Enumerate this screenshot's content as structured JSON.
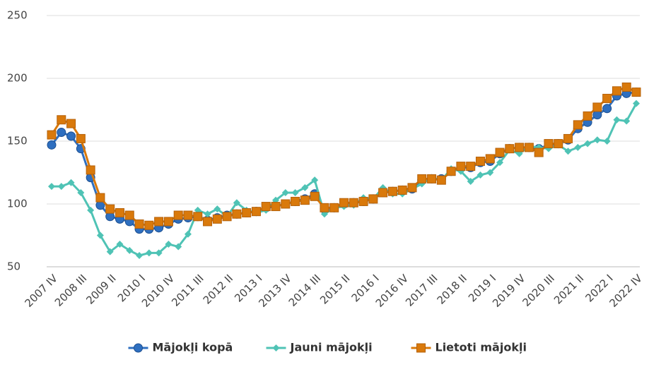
{
  "chart_data": {
    "type": "line",
    "categories": [
      "2007 IV",
      null,
      null,
      "2008 III",
      null,
      null,
      "2009 II",
      null,
      null,
      "2010 I",
      null,
      null,
      "2010 IV",
      null,
      null,
      "2011 III",
      null,
      null,
      "2012 II",
      null,
      null,
      "2013 I",
      null,
      null,
      "2013 IV",
      null,
      null,
      "2014 III",
      null,
      null,
      "2015 II",
      null,
      null,
      "2016 I",
      null,
      null,
      "2016 IV",
      null,
      null,
      "2017 III",
      null,
      null,
      "2018 II",
      null,
      null,
      "2019 I",
      null,
      null,
      "2019 IV",
      null,
      null,
      "2020 III",
      null,
      null,
      "2021 II",
      null,
      null,
      "2022 I",
      null,
      null,
      "2022 IV"
    ],
    "series": [
      {
        "name": "Mājokļi kopā",
        "color": "#2e6fc0",
        "marker": "circle",
        "values": [
          147,
          157,
          154,
          144,
          121,
          99,
          90,
          88,
          86,
          80,
          80,
          81,
          84,
          88,
          89,
          90,
          87,
          89,
          91,
          92,
          93,
          94,
          97,
          98,
          100,
          102,
          104,
          108,
          96,
          97,
          100,
          101,
          102,
          104,
          109,
          110,
          111,
          112,
          119,
          120,
          120,
          126,
          129,
          129,
          133,
          134,
          140,
          144,
          145,
          145,
          144,
          147,
          148,
          151,
          160,
          165,
          171,
          176,
          186,
          188,
          189
        ]
      },
      {
        "name": "Jauni mājokļi",
        "color": "#4fc3b5",
        "marker": "diamond",
        "values": [
          114,
          114,
          117,
          109,
          95,
          75,
          62,
          68,
          63,
          59,
          61,
          61,
          68,
          66,
          76,
          95,
          92,
          96,
          90,
          101,
          95,
          93,
          95,
          103,
          109,
          109,
          113,
          119,
          92,
          97,
          98,
          99,
          105,
          104,
          113,
          108,
          108,
          112,
          116,
          121,
          119,
          128,
          126,
          118,
          123,
          125,
          133,
          143,
          140,
          146,
          145,
          144,
          147,
          142,
          145,
          148,
          151,
          150,
          167,
          166,
          180
        ]
      },
      {
        "name": "Lietoti mājokļi",
        "color": "#d9790b",
        "marker": "square",
        "values": [
          155,
          167,
          164,
          152,
          127,
          105,
          96,
          93,
          91,
          84,
          83,
          86,
          86,
          91,
          91,
          90,
          86,
          88,
          90,
          92,
          93,
          94,
          98,
          98,
          100,
          102,
          103,
          106,
          97,
          97,
          101,
          101,
          102,
          104,
          109,
          110,
          111,
          113,
          120,
          120,
          119,
          126,
          130,
          130,
          134,
          136,
          141,
          144,
          145,
          145,
          141,
          148,
          148,
          152,
          163,
          170,
          177,
          184,
          190,
          193,
          189
        ]
      }
    ],
    "ylim": [
      50,
      250
    ],
    "yticks": [
      50,
      100,
      150,
      200,
      250
    ],
    "grid": true,
    "legend": "bottom"
  }
}
